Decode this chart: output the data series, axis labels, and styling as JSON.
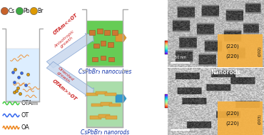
{
  "bg_color": "#ffffff",
  "cs_color": "#c8622a",
  "pb_color": "#3daa44",
  "br_color": "#dd9900",
  "otam_color": "#44cc44",
  "ot_color": "#3366ee",
  "oa_color": "#ee8822",
  "arrow_fill": "#c8d8ee",
  "arrow_edge": "#7799cc",
  "label_color": "#cc2222",
  "beaker_outline": "#aaaaaa",
  "beaker1_liquid": "#66cc55",
  "beaker2_liquid": "#aaddaa",
  "left_liquid": "#ddeeff",
  "cube_color": "#cc7733",
  "rod_color": "#ddaa44",
  "orange_box": "#f5b040",
  "text_blue": "#1133aa",
  "nanorods_text_color": "#ffffff",
  "arrow1_label_top": "OTAm<<OT",
  "arrow1_label_bot": "Anisotropic\ngrowth",
  "arrow2_label_top": "OTAm>>OT",
  "arrow2_label_bot": "Oriented\ngrowth",
  "beaker1_label": "CsPbBr₃ nanocubes",
  "beaker2_label": "CsPbBr₃ nanorods",
  "nanorods_text": "Nanorods",
  "tem1_side_text": "(002)",
  "tem2_side_text": "(003)",
  "scale_bar": "50 nm",
  "label220_1a": "(220)",
  "label220_1b": "(220)",
  "label220_2a": "(220)",
  "label220_2b": "(220)"
}
